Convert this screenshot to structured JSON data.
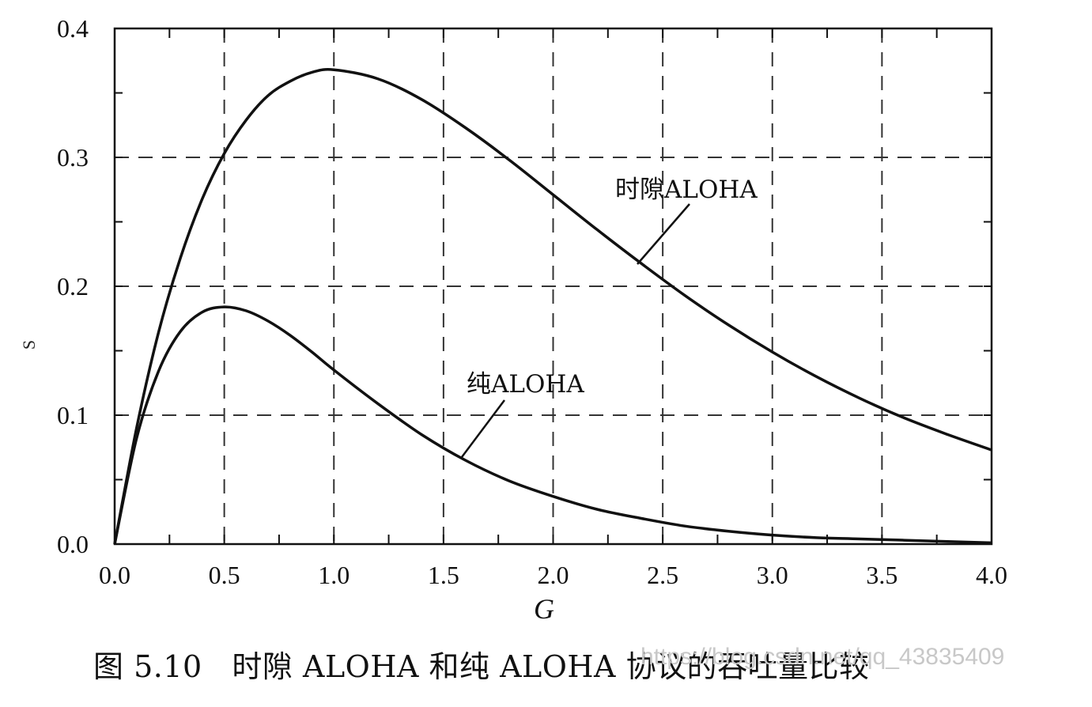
{
  "chart_data": {
    "type": "line",
    "xlabel": "G",
    "ylabel": "S",
    "xlim": [
      0,
      4
    ],
    "ylim": [
      0,
      0.4
    ],
    "grid": true,
    "x_ticks": [
      "0.0",
      "0.5",
      "1.0",
      "1.5",
      "2.0",
      "2.5",
      "3.0",
      "3.5",
      "4.0"
    ],
    "y_ticks": [
      "0.0",
      "0.1",
      "0.2",
      "0.3",
      "0.4"
    ],
    "x": [
      0,
      0.1,
      0.2,
      0.3,
      0.4,
      0.5,
      0.6,
      0.7,
      0.8,
      0.9,
      1.0,
      1.2,
      1.4,
      1.6,
      1.8,
      2.0,
      2.2,
      2.4,
      2.6,
      2.8,
      3.0,
      3.2,
      3.4,
      3.6,
      3.8,
      4.0
    ],
    "series": [
      {
        "name": "时隙ALOHA",
        "values": [
          0,
          0.09,
          0.164,
          0.222,
          0.268,
          0.303,
          0.329,
          0.348,
          0.359,
          0.366,
          0.368,
          0.361,
          0.345,
          0.323,
          0.298,
          0.271,
          0.244,
          0.218,
          0.193,
          0.17,
          0.149,
          0.13,
          0.113,
          0.098,
          0.085,
          0.073
        ]
      },
      {
        "name": "纯ALOHA",
        "values": [
          0,
          0.082,
          0.134,
          0.165,
          0.18,
          0.184,
          0.181,
          0.173,
          0.162,
          0.149,
          0.135,
          0.109,
          0.085,
          0.065,
          0.049,
          0.037,
          0.027,
          0.02,
          0.014,
          0.01,
          0.007,
          0.005,
          0.004,
          0.003,
          0.002,
          0.001
        ]
      }
    ]
  },
  "caption": "图 5.10   时隙 ALOHA 和纯 ALOHA 协议的吞吐量比较",
  "watermark": "https://blog.csdn.net/qq_43835409"
}
